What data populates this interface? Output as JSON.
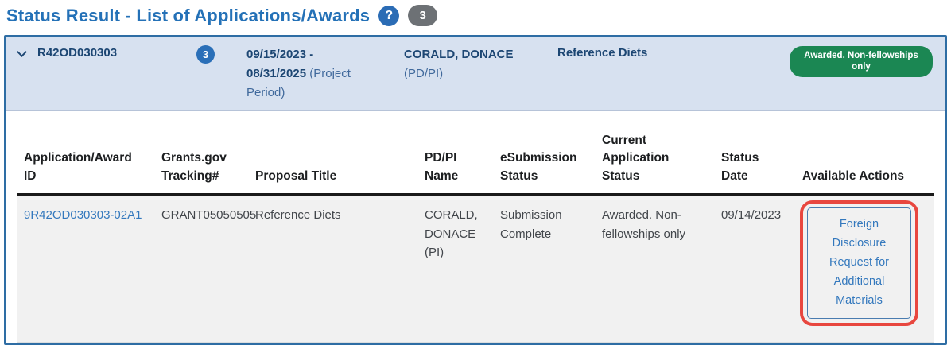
{
  "header": {
    "title": "Status Result - List of Applications/Awards",
    "result_count": "3"
  },
  "icons": {
    "help_glyph": "?",
    "expand_state": "expanded"
  },
  "award_group": {
    "award_number": "R42OD030303",
    "application_count": "3",
    "project_period_dates": "09/15/2023 - 08/31/2025",
    "project_period_label": "(Project Period)",
    "pi_name": "CORALD, DONACE",
    "pi_role_label": "(PD/PI)",
    "proposal_title": "Reference Diets",
    "award_status": "Awarded. Non-fellowships only"
  },
  "table": {
    "headers": [
      "Application/Award ID",
      "Grants.gov Tracking#",
      "Proposal Title",
      "PD/PI Name",
      "eSubmission Status",
      "Current Application Status",
      "Status Date",
      "Available Actions"
    ],
    "row": {
      "application_id": "9R42OD030303-02A1",
      "tracking_number": "GRANT05050505",
      "proposal_title": "Reference Diets",
      "pdpi_name": "CORALD, DONACE (PI)",
      "esubmission_status": "Submission Complete",
      "current_application_status": "Awarded. Non-fellowships only",
      "status_date": "09/14/2023",
      "available_action": "Foreign Disclosure Request for Additional Materials"
    }
  },
  "colors": {
    "title_blue": "#2471b7",
    "navy_text": "#1c4673",
    "muted_blue_text": "#40699c",
    "band_background": "#d7e1f0",
    "panel_border": "#2e6da4",
    "status_green": "#1b8753",
    "row_background": "#f1f1f1",
    "link_blue": "#3378bd",
    "annotation_red": "#e8473f",
    "count_badge_gray": "#6d7175",
    "count_badge_blue": "#2a6fb8"
  }
}
